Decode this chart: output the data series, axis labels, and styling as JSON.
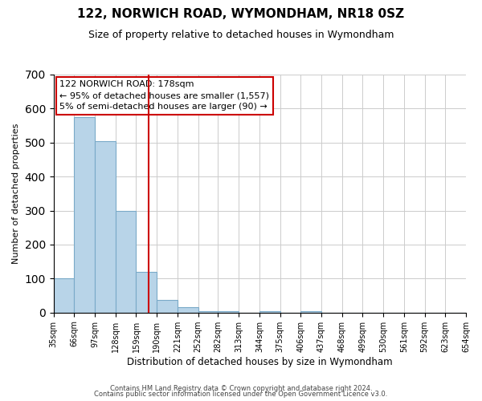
{
  "title": "122, NORWICH ROAD, WYMONDHAM, NR18 0SZ",
  "subtitle": "Size of property relative to detached houses in Wymondham",
  "xlabel": "Distribution of detached houses by size in Wymondham",
  "ylabel": "Number of detached properties",
  "bar_edges": [
    35,
    66,
    97,
    128,
    159,
    190,
    221,
    252,
    282,
    313,
    344,
    375,
    406,
    437,
    468,
    499,
    530,
    561,
    592,
    623,
    654
  ],
  "bar_heights": [
    100,
    575,
    505,
    300,
    120,
    37,
    15,
    5,
    5,
    0,
    5,
    0,
    5,
    0,
    0,
    0,
    0,
    0,
    0,
    0
  ],
  "tick_labels": [
    "35sqm",
    "66sqm",
    "97sqm",
    "128sqm",
    "159sqm",
    "190sqm",
    "221sqm",
    "252sqm",
    "282sqm",
    "313sqm",
    "344sqm",
    "375sqm",
    "406sqm",
    "437sqm",
    "468sqm",
    "499sqm",
    "530sqm",
    "561sqm",
    "592sqm",
    "623sqm",
    "654sqm"
  ],
  "bar_color": "#b8d4e8",
  "bar_edge_color": "#7aaac8",
  "vline_x": 178,
  "vline_color": "#cc0000",
  "ylim": [
    0,
    700
  ],
  "yticks": [
    0,
    100,
    200,
    300,
    400,
    500,
    600,
    700
  ],
  "annotation_line1": "122 NORWICH ROAD: 178sqm",
  "annotation_line2": "← 95% of detached houses are smaller (1,557)",
  "annotation_line3": "5% of semi-detached houses are larger (90) →",
  "footer_line1": "Contains HM Land Registry data © Crown copyright and database right 2024.",
  "footer_line2": "Contains public sector information licensed under the Open Government Licence v3.0.",
  "bg_color": "#ffffff",
  "grid_color": "#cccccc",
  "title_fontsize": 11,
  "subtitle_fontsize": 9,
  "ylabel_fontsize": 8,
  "xlabel_fontsize": 8.5,
  "tick_fontsize": 7,
  "annotation_fontsize": 8,
  "footer_fontsize": 6
}
